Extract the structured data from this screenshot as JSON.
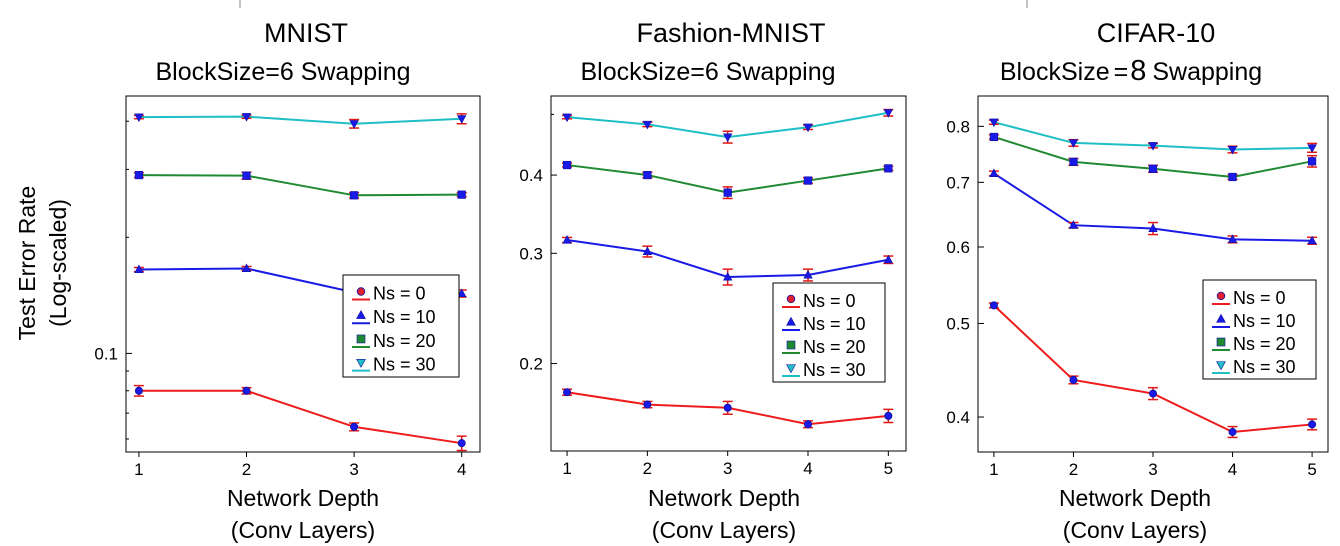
{
  "figure": {
    "ylabel_line1": "Test Error Rate",
    "ylabel_line2": "(Log-scaled)"
  },
  "colors": {
    "ns0": "#ee1c1c",
    "ns10": "#1a1ae6",
    "ns20": "#1f8a32",
    "ns30": "#1fbfc6",
    "marker": "#1a1ae6",
    "errorbar": "#e01818"
  },
  "chart_data": [
    {
      "type": "line",
      "title": "MNIST",
      "subtitle": "BlockSize=6 Swapping",
      "xlabel_line1": "Network Depth",
      "xlabel_line2": "(Conv Layers)",
      "ylabel": "Test Error Rate (Log-scaled)",
      "yscale": "log",
      "x": [
        1,
        2,
        3,
        4
      ],
      "xlim": [
        0.88,
        4.17
      ],
      "ylim": [
        0.0555,
        0.465
      ],
      "yticks": [
        0.1
      ],
      "ytick_labels": [
        "0.1"
      ],
      "series": [
        {
          "name": "Ns = 0",
          "values": [
            0.08,
            0.08,
            0.0645,
            0.0585
          ],
          "errors": [
            0.0025,
            0.0015,
            0.0015,
            0.0025
          ]
        },
        {
          "name": "Ns = 10",
          "values": [
            0.165,
            0.166,
            0.144,
            0.143
          ],
          "errors": [
            0.002,
            0.002,
            0.003,
            0.003
          ]
        },
        {
          "name": "Ns = 20",
          "values": [
            0.29,
            0.289,
            0.257,
            0.258
          ],
          "errors": [
            0.004,
            0.006,
            0.004,
            0.003
          ]
        },
        {
          "name": "Ns = 30",
          "values": [
            0.41,
            0.411,
            0.394,
            0.406
          ],
          "errors": [
            0.004,
            0.004,
            0.01,
            0.012
          ]
        }
      ],
      "legend": [
        "Ns = 0",
        "Ns = 10",
        "Ns = 20",
        "Ns = 30"
      ],
      "legend_position": "lower-right"
    },
    {
      "type": "line",
      "title": "Fashion-MNIST",
      "subtitle": "BlockSize=6 Swapping",
      "xlabel_line1": "Network Depth",
      "xlabel_line2": "(Conv Layers)",
      "ylabel": "Test Error Rate (Log-scaled)",
      "yscale": "log",
      "x": [
        1,
        2,
        3,
        4,
        5
      ],
      "xlim": [
        0.8,
        5.22
      ],
      "ylim": [
        0.145,
        0.535
      ],
      "yticks": [
        0.2,
        0.3,
        0.4
      ],
      "ytick_labels": [
        "0.2",
        "0.3",
        "0.4"
      ],
      "series": [
        {
          "name": "Ns = 0",
          "values": [
            0.18,
            0.172,
            0.17,
            0.16,
            0.165
          ],
          "errors": [
            0.002,
            0.002,
            0.004,
            0.002,
            0.004
          ]
        },
        {
          "name": "Ns = 10",
          "values": [
            0.315,
            0.302,
            0.275,
            0.277,
            0.293
          ],
          "errors": [
            0.003,
            0.006,
            0.008,
            0.006,
            0.004
          ]
        },
        {
          "name": "Ns = 20",
          "values": [
            0.415,
            0.4,
            0.375,
            0.392,
            0.41
          ],
          "errors": [
            0.003,
            0.004,
            0.008,
            0.004,
            0.003
          ]
        },
        {
          "name": "Ns = 30",
          "values": [
            0.495,
            0.482,
            0.46,
            0.477,
            0.503
          ],
          "errors": [
            0.003,
            0.004,
            0.01,
            0.004,
            0.006
          ]
        }
      ],
      "legend": [
        "Ns = 0",
        "Ns = 10",
        "Ns = 20",
        "Ns = 30"
      ],
      "legend_position": "lower-right"
    },
    {
      "type": "line",
      "title": "CIFAR-10",
      "subtitle_prefix": "BlockSize",
      "subtitle_eq": "=",
      "subtitle_number": "8",
      "subtitle_suffix": "Swapping",
      "xlabel_line1": "Network Depth",
      "xlabel_line2": "(Conv Layers)",
      "ylabel": "Test Error Rate (Log-scaled)",
      "yscale": "log",
      "x": [
        1,
        2,
        3,
        4,
        5
      ],
      "xlim": [
        0.8,
        5.2
      ],
      "ylim": [
        0.368,
        0.86
      ],
      "yticks": [
        0.4,
        0.5,
        0.6,
        0.7,
        0.8
      ],
      "ytick_labels": [
        "0.4",
        "0.5",
        "0.6",
        "0.7",
        "0.8"
      ],
      "series": [
        {
          "name": "Ns = 0",
          "values": [
            0.522,
            0.437,
            0.423,
            0.386,
            0.393
          ],
          "errors": [
            0.003,
            0.004,
            0.006,
            0.005,
            0.005
          ]
        },
        {
          "name": "Ns = 10",
          "values": [
            0.715,
            0.632,
            0.627,
            0.611,
            0.609
          ],
          "errors": [
            0.004,
            0.004,
            0.009,
            0.005,
            0.005
          ]
        },
        {
          "name": "Ns = 20",
          "values": [
            0.78,
            0.735,
            0.723,
            0.709,
            0.736
          ],
          "errors": [
            0.004,
            0.006,
            0.006,
            0.004,
            0.01
          ]
        },
        {
          "name": "Ns = 30",
          "values": [
            0.808,
            0.769,
            0.764,
            0.757,
            0.76
          ],
          "errors": [
            0.004,
            0.006,
            0.004,
            0.006,
            0.008
          ]
        }
      ],
      "legend": [
        "Ns = 0",
        "Ns = 10",
        "Ns = 20",
        "Ns = 30"
      ],
      "legend_position": "lower-right"
    }
  ]
}
